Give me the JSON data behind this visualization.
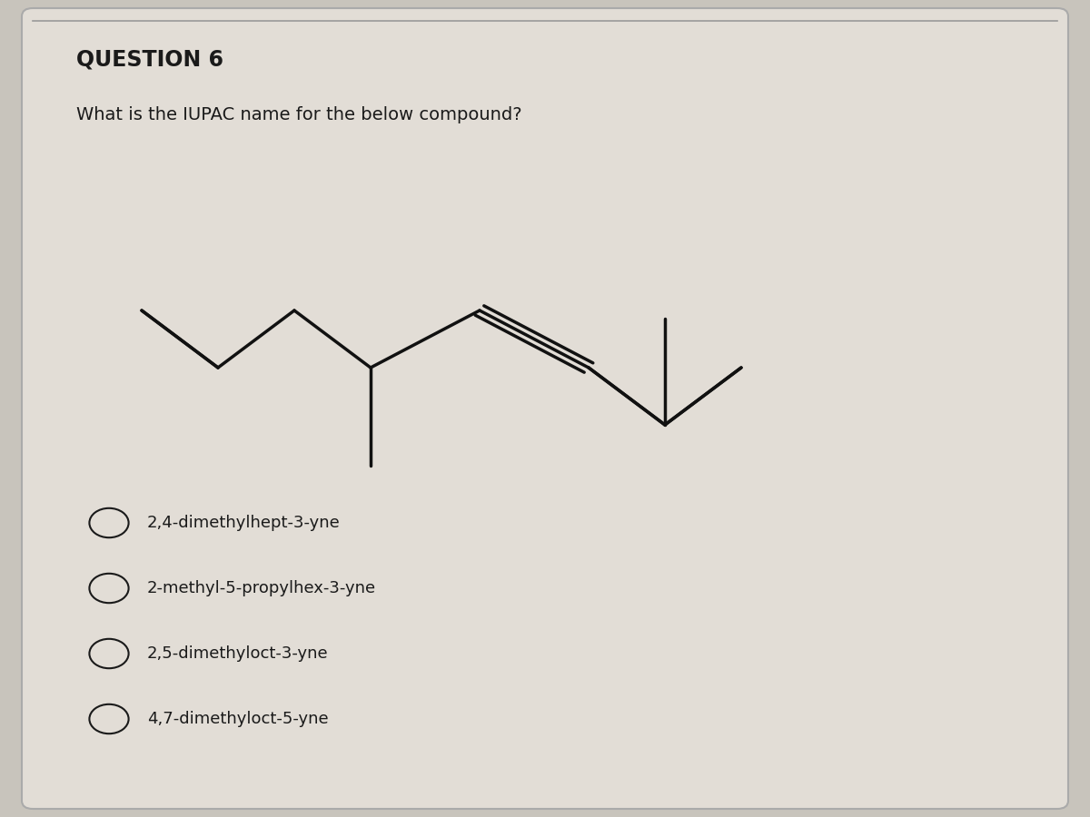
{
  "title": "QUESTION 6",
  "question": "What is the IUPAC name for the below compound?",
  "options": [
    "2,4-dimethylhept-3-yne",
    "2-methyl-5-propylhex-3-yne",
    "2,5-dimethyloct-3-yne",
    "4,7-dimethyloct-5-yne"
  ],
  "bg_color": "#c8c4bc",
  "card_color": "#e2ddd6",
  "text_color": "#1a1a1a",
  "line_color": "#111111"
}
